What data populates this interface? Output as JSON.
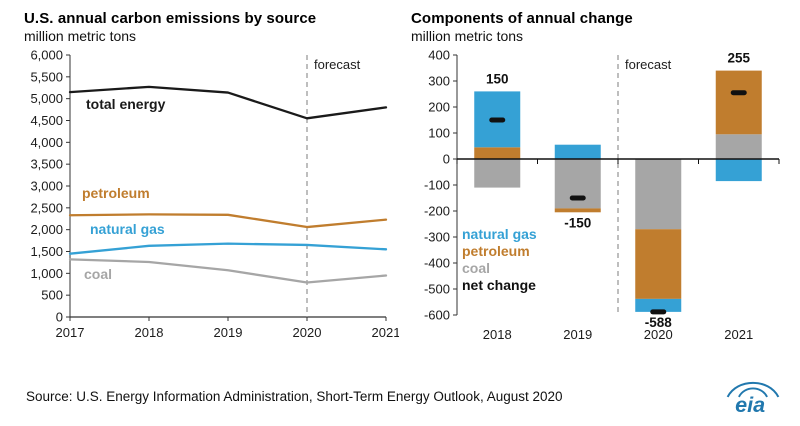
{
  "page": {
    "source_note": "Source: U.S. Energy Information Administration, Short-Term Energy Outlook, August 2020",
    "logo_text": "eia"
  },
  "colors": {
    "total": "#1a1a1a",
    "petroleum": "#c07d2e",
    "natural_gas": "#35a1d5",
    "coal": "#a6a6a6",
    "net": "#111111",
    "forecast_line": "#9b9b9b",
    "axis": "#333333",
    "logo": "#2178ae"
  },
  "chart_data": [
    {
      "type": "line",
      "title": "U.S. annual carbon emissions by source",
      "subtitle": "million metric tons",
      "x": [
        2017,
        2018,
        2019,
        2020,
        2021
      ],
      "ylim": [
        0,
        6000
      ],
      "ytick_step": 500,
      "grid": false,
      "legend_position": "inline-labels",
      "forecast_label": "forecast",
      "forecast_x": 2020,
      "series": [
        {
          "name": "total energy",
          "color_key": "total",
          "values": [
            5150,
            5270,
            5140,
            4550,
            4800
          ]
        },
        {
          "name": "petroleum",
          "color_key": "petroleum",
          "values": [
            2330,
            2350,
            2340,
            2060,
            2230
          ]
        },
        {
          "name": "natural gas",
          "color_key": "natural_gas",
          "values": [
            1450,
            1630,
            1680,
            1650,
            1550
          ]
        },
        {
          "name": "coal",
          "color_key": "coal",
          "values": [
            1320,
            1260,
            1070,
            790,
            950
          ]
        }
      ]
    },
    {
      "type": "stacked-bar",
      "title": "Components of annual change",
      "subtitle": "million metric tons",
      "categories": [
        "2018",
        "2019",
        "2020",
        "2021"
      ],
      "ylim": [
        -600,
        400
      ],
      "ytick_step": 100,
      "grid": false,
      "forecast_label": "forecast",
      "forecast_after_index": 1,
      "series": [
        {
          "name": "coal",
          "color_key": "coal",
          "values": [
            -110,
            -190,
            -270,
            95
          ]
        },
        {
          "name": "petroleum",
          "color_key": "petroleum",
          "values": [
            45,
            -15,
            -268,
            245
          ]
        },
        {
          "name": "natural gas",
          "color_key": "natural_gas",
          "values": [
            215,
            55,
            -50,
            -85
          ]
        }
      ],
      "net_change": {
        "name": "net change",
        "values": [
          150,
          -150,
          -588,
          255
        ]
      },
      "value_labels": [
        "150",
        "-150",
        "-588",
        "255"
      ],
      "legend": [
        {
          "label": "natural gas",
          "color_key": "natural_gas"
        },
        {
          "label": "petroleum",
          "color_key": "petroleum"
        },
        {
          "label": "coal",
          "color_key": "coal"
        },
        {
          "label": "net change",
          "color_key": "net"
        }
      ]
    }
  ]
}
